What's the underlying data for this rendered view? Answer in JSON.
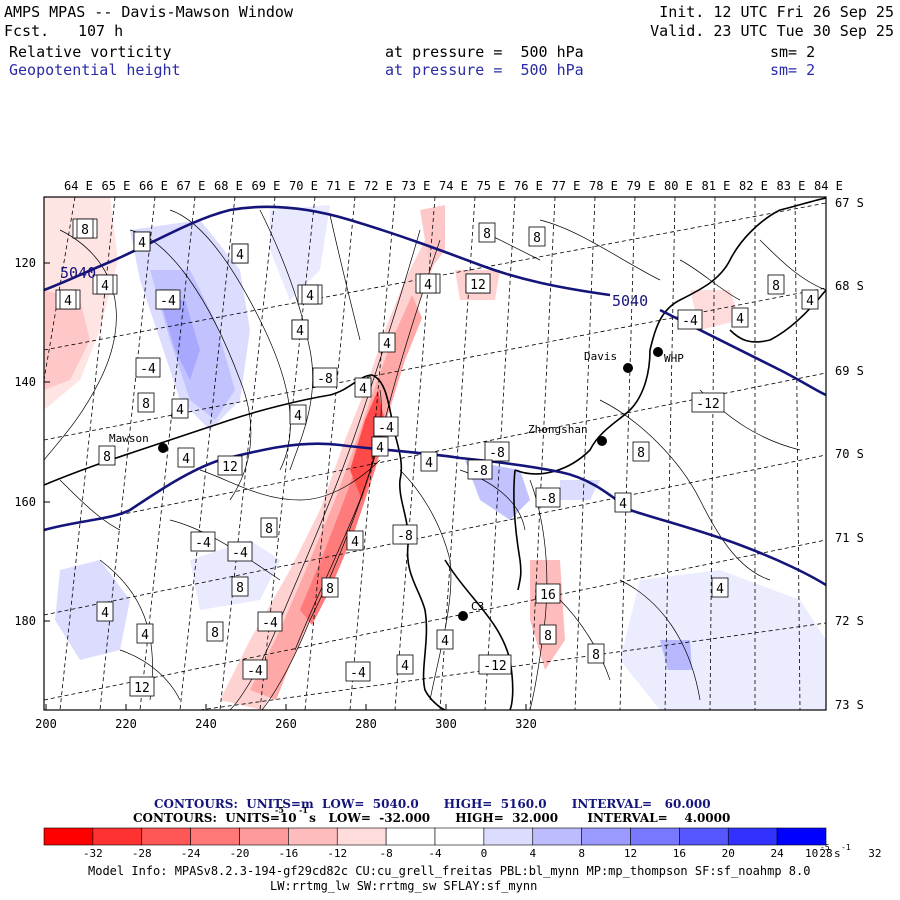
{
  "header": {
    "title": "AMPS MPAS -- Davis-Mawson Window",
    "fcst_label": "Fcst.",
    "fcst_value": "107 h",
    "init_text": "Init. 12 UTC Fri 26 Sep 25",
    "valid_text": "Valid. 23 UTC Tue 30 Sep 25",
    "field1_name": "Relative vorticity",
    "field1_pressure": "at pressure =  500 hPa",
    "field1_sm": "sm= 2",
    "field2_name": "Geopotential height",
    "field2_pressure": "at pressure =  500 hPa",
    "field2_sm": "sm= 2"
  },
  "map": {
    "top_lon_labels": [
      "64 E",
      "65 E",
      "66 E",
      "67 E",
      "68 E",
      "69 E",
      "70 E",
      "71 E",
      "72 E",
      "73 E",
      "74 E",
      "75 E",
      "76 E",
      "77 E",
      "78 E",
      "79 E",
      "80 E",
      "81 E",
      "82 E",
      "83 E",
      "84 E"
    ],
    "right_lat_labels": [
      "67 S",
      "68 S",
      "69 S",
      "70 S",
      "71 S",
      "72 S",
      "73 S"
    ],
    "x_axis_labels": [
      "200",
      "220",
      "240",
      "260",
      "280",
      "300",
      "320"
    ],
    "y_axis_labels": [
      "120",
      "140",
      "160",
      "180"
    ],
    "stations": [
      "Davis",
      "WHP",
      "Zhongshan",
      "Mawson",
      "C3"
    ],
    "height_contour_labels": [
      "5040",
      "5040"
    ],
    "vorticity_labels": [
      "-8",
      "4",
      "4",
      "12",
      "-4",
      "4",
      "-4",
      "-8",
      "-8",
      "8",
      "4",
      "-8",
      "-4",
      "4",
      "8",
      "4",
      "4",
      "-4",
      "8",
      "4",
      "12",
      "-8",
      "4",
      "-8",
      "4",
      "8",
      "-8",
      "-4",
      "-4",
      "4",
      "8",
      "8",
      "-4",
      "8",
      "4",
      "4",
      "16",
      "8",
      "8",
      "4",
      "4",
      "-12",
      "-4",
      "-4",
      "12",
      "8",
      "8",
      "8",
      "4",
      "4",
      "-4",
      "-12",
      "8",
      "4",
      "4",
      "-8",
      "8",
      "4",
      "4",
      "4",
      "4",
      "-4",
      "4",
      "4",
      "12",
      "4"
    ]
  },
  "legend": {
    "contours1": "CONTOURS:  UNITS=m  LOW=  5040.0      HIGH=  5160.0      INTERVAL=   60.000",
    "contours2": "CONTOURS:  UNITS=10   s   LOW=  -32.000      HIGH=  32.000       INTERVAL=    4.0000",
    "sup1": "-5",
    "sup2": "-1",
    "colorbar_labels": [
      "-32",
      "-28",
      "-24",
      "-20",
      "-16",
      "-12",
      "-8",
      "-4",
      "0",
      "4",
      "8",
      "12",
      "16",
      "20",
      "24",
      "28",
      "32"
    ],
    "colorbar_units": "10",
    "colorbar_units_sup": "-5",
    "colorbar_units_sup2": "s",
    "colorbar_units_sup3": "-1",
    "colors": [
      "#ff0000",
      "#ff3232",
      "#ff5656",
      "#ff7878",
      "#ff9a9a",
      "#ffbcbc",
      "#ffdcdc",
      "#ffffff",
      "#ffffff",
      "#dcdcff",
      "#bcbcff",
      "#9a9aff",
      "#7878ff",
      "#5656ff",
      "#3232ff",
      "#0000ff"
    ]
  },
  "footer": {
    "model_info_1": "Model Info: MPASv8.2.3-194-gf29cd82c CU:cu_grell_freitas PBL:bl_mynn MP:mp_thompson SF:sf_noahmp 8.0",
    "model_info_2": "LW:rrtmg_lw SW:rrtmg_sw SFLAY:sf_mynn"
  }
}
